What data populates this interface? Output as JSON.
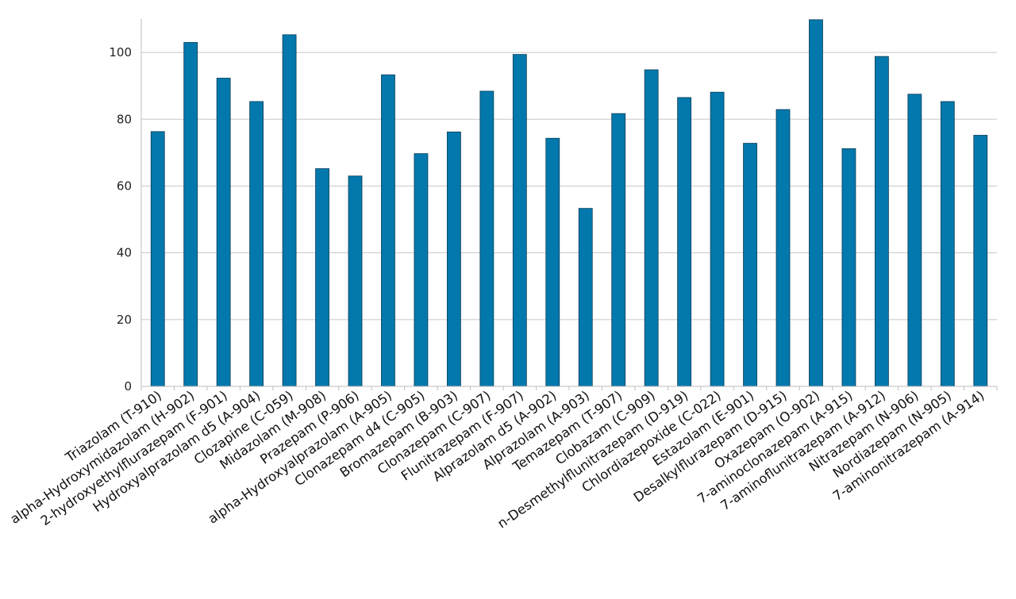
{
  "chart_data": {
    "type": "bar",
    "categories": [
      "Triazolam (T-910)",
      "alpha-Hydroxymidazolam (H-902)",
      "2-hydroxyethylflurazepam (F-901)",
      "Hydroxyalprazolam d5 (A-904)",
      "Clozapine (C-059)",
      "Midazolam (M-908)",
      "Prazepam (P-906)",
      "alpha-Hydroxyalprazolam (A-905)",
      "Clonazepam d4 (C-905)",
      "Bromazepam (B-903)",
      "Clonazepam (C-907)",
      "Flunitrazepam (F-907)",
      "Alprazolam d5 (A-902)",
      "Alprazolam (A-903)",
      "Temazepam (T-907)",
      "Clobazam (C-909)",
      "n-Desmethylflunitrazepam (D-919)",
      "Chlordiazepoxide (C-022)",
      "Estazolam (E-901)",
      "Desalkylflurazepam (D-915)",
      "Oxazepam (O-902)",
      "7-aminoclonazepam (A-915)",
      "7-aminoflunitrazepam (A-912)",
      "Nitrazepam (N-906)",
      "Nordiazepam (N-905)",
      "7-aminonitrazepam (A-914)"
    ],
    "values": [
      76.3,
      103.0,
      92.3,
      85.3,
      105.3,
      65.2,
      63.0,
      93.3,
      69.7,
      76.2,
      88.4,
      99.4,
      74.3,
      53.3,
      81.7,
      94.8,
      86.5,
      88.1,
      72.8,
      82.9,
      109.8,
      71.2,
      98.8,
      87.5,
      85.3,
      75.2
    ],
    "ylim": [
      0,
      110
    ],
    "yticks": [
      0,
      20,
      40,
      60,
      80,
      100
    ],
    "grid": true,
    "colors": {
      "bar": "#0278ac",
      "bar_edge": "#0a3d57",
      "grid": "#c8c8c8"
    }
  }
}
